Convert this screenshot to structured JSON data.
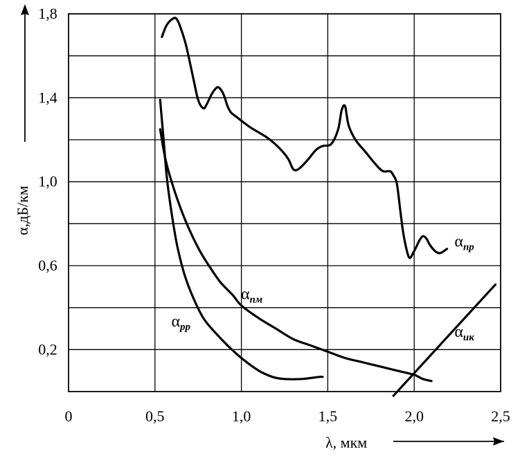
{
  "chart_data": {
    "type": "line",
    "xlabel": "λ, мкм",
    "ylabel": "α,дБ/км",
    "xlim": [
      0,
      2.5
    ],
    "ylim": [
      0,
      1.8
    ],
    "x_ticks": [
      "0",
      "0,5",
      "1,0",
      "1,5",
      "2,0",
      "2,5"
    ],
    "y_ticks": [
      "0,2",
      "0,6",
      "1,0",
      "1,4",
      "1,8"
    ],
    "grid": true,
    "series": [
      {
        "name": "α",
        "sub": "пр",
        "x": [
          0.54,
          0.57,
          0.61,
          0.63,
          0.65,
          0.68,
          0.72,
          0.75,
          0.78,
          0.8,
          0.83,
          0.86,
          0.88,
          0.9,
          0.92,
          0.94,
          0.97,
          1.05,
          1.15,
          1.22,
          1.27,
          1.3,
          1.33,
          1.38,
          1.43,
          1.47,
          1.52,
          1.56,
          1.58,
          1.6,
          1.62,
          1.66,
          1.72,
          1.78,
          1.82,
          1.86,
          1.88,
          1.9,
          1.92,
          1.94,
          1.97,
          2.0,
          2.03,
          2.05,
          2.07,
          2.09,
          2.12,
          2.15,
          2.19
        ],
        "y": [
          1.69,
          1.75,
          1.78,
          1.77,
          1.73,
          1.65,
          1.5,
          1.39,
          1.35,
          1.37,
          1.42,
          1.45,
          1.44,
          1.41,
          1.36,
          1.33,
          1.31,
          1.26,
          1.21,
          1.16,
          1.11,
          1.06,
          1.06,
          1.1,
          1.15,
          1.17,
          1.18,
          1.25,
          1.34,
          1.36,
          1.27,
          1.2,
          1.14,
          1.08,
          1.05,
          1.05,
          1.03,
          0.99,
          0.86,
          0.74,
          0.64,
          0.67,
          0.72,
          0.74,
          0.73,
          0.7,
          0.67,
          0.66,
          0.68
        ]
      },
      {
        "name": "α",
        "sub": "пм",
        "x": [
          0.53,
          0.56,
          0.6,
          0.65,
          0.7,
          0.76,
          0.82,
          0.88,
          0.95,
          1.0,
          1.1,
          1.2,
          1.3,
          1.4,
          1.5,
          1.6,
          1.7,
          1.8,
          1.9,
          2.0,
          2.05,
          2.1
        ],
        "y": [
          1.25,
          1.11,
          0.99,
          0.87,
          0.77,
          0.67,
          0.59,
          0.52,
          0.46,
          0.41,
          0.35,
          0.3,
          0.25,
          0.22,
          0.19,
          0.16,
          0.14,
          0.12,
          0.1,
          0.08,
          0.06,
          0.05
        ]
      },
      {
        "name": "α",
        "sub": "рр",
        "x": [
          0.53,
          0.55,
          0.57,
          0.6,
          0.63,
          0.67,
          0.72,
          0.78,
          0.85,
          0.92,
          1.0,
          1.1,
          1.18,
          1.25,
          1.35,
          1.45,
          1.47
        ],
        "y": [
          1.39,
          1.2,
          1.01,
          0.83,
          0.69,
          0.56,
          0.45,
          0.35,
          0.28,
          0.22,
          0.16,
          0.1,
          0.07,
          0.06,
          0.06,
          0.07,
          0.07
        ]
      },
      {
        "name": "α",
        "sub": "ик",
        "x": [
          1.88,
          2.47
        ],
        "y": [
          -0.02,
          0.51
        ]
      }
    ],
    "labels": [
      {
        "name": "α",
        "sub": "пр",
        "x": 2.29,
        "y": 0.69
      },
      {
        "name": "α",
        "sub": "пм",
        "x": 1.06,
        "y": 0.44
      },
      {
        "name": "α",
        "sub": "рр",
        "x": 0.65,
        "y": 0.31
      },
      {
        "name": "α",
        "sub": "ик",
        "x": 2.29,
        "y": 0.26
      }
    ]
  }
}
